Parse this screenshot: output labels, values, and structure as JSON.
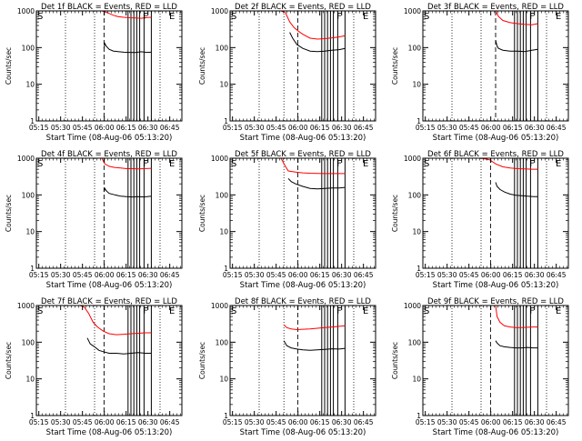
{
  "x_ticks": [
    "05:15",
    "05:30",
    "05:45",
    "06:00",
    "06:15",
    "06:30",
    "06:45"
  ],
  "y_ticks": [
    "1",
    "10",
    "100",
    "1000"
  ],
  "ylabel": "Counts/sec",
  "xlabel": "Start Time (08-Aug-06 05:13:20)",
  "colors": {
    "events": "#000000",
    "lld": "#ff0000",
    "axes": "#000000"
  },
  "chart_data": [
    {
      "type": "line",
      "title": "Det 1f BLACK = Events, RED = LLD",
      "scale": "log",
      "ylim": [
        1,
        1000
      ],
      "xlim_minutes": [
        0,
        100
      ],
      "dotted_lines": [
        20,
        40,
        85
      ],
      "dashed_line": 46.5,
      "solid_lines": [
        63,
        65,
        67,
        69,
        71,
        74,
        79
      ],
      "markers": [
        {
          "text": "S",
          "x": 0
        },
        {
          "text": "F",
          "x": 72
        },
        {
          "text": "E",
          "x": 90
        }
      ],
      "series": [
        {
          "name": "Events",
          "x": [
            46.5,
            47,
            48,
            50,
            53,
            56,
            60,
            64,
            68,
            72,
            76,
            79
          ],
          "values": [
            95,
            130,
            110,
            90,
            80,
            78,
            75,
            74,
            73,
            77,
            74,
            75
          ]
        },
        {
          "name": "LLD",
          "x": [
            45,
            47,
            50,
            53,
            56,
            60,
            64,
            68,
            72,
            76,
            79
          ],
          "values": [
            1000,
            950,
            850,
            760,
            700,
            670,
            650,
            640,
            630,
            660,
            670
          ]
        }
      ]
    },
    {
      "type": "line",
      "title": "Det 2f BLACK = Events, RED = LLD",
      "scale": "log",
      "ylim": [
        1,
        1000
      ],
      "xlim_minutes": [
        0,
        100
      ],
      "dotted_lines": [
        20,
        37,
        85
      ],
      "dashed_line": 46.5,
      "solid_lines": [
        63,
        65,
        67,
        69,
        71,
        74,
        79
      ],
      "markers": [
        {
          "text": "S",
          "x": 0
        },
        {
          "text": "F",
          "x": 72
        },
        {
          "text": "E",
          "x": 90
        }
      ],
      "series": [
        {
          "name": "Events",
          "x": [
            41,
            43,
            46,
            50,
            55,
            60,
            65,
            70,
            75,
            79
          ],
          "values": [
            260,
            180,
            120,
            95,
            80,
            78,
            80,
            85,
            88,
            95
          ]
        },
        {
          "name": "LLD",
          "x": [
            35,
            38,
            41,
            44,
            47,
            50,
            55,
            60,
            65,
            70,
            75,
            79
          ],
          "values": [
            1000,
            900,
            500,
            350,
            280,
            230,
            180,
            170,
            175,
            185,
            195,
            210
          ]
        }
      ]
    },
    {
      "type": "line",
      "title": "Det 3f BLACK = Events, RED = LLD",
      "scale": "log",
      "ylim": [
        1,
        1000
      ],
      "xlim_minutes": [
        0,
        100
      ],
      "dotted_lines": [
        20,
        40,
        85
      ],
      "dashed_line": 50,
      "solid_lines": [
        63,
        65,
        67,
        69,
        71,
        74,
        79
      ],
      "markers": [
        {
          "text": "S",
          "x": 0
        },
        {
          "text": "F",
          "x": 72
        },
        {
          "text": "E",
          "x": 90
        }
      ],
      "series": [
        {
          "name": "Events",
          "x": [
            50,
            51,
            52,
            55,
            60,
            65,
            70,
            75,
            79
          ],
          "values": [
            160,
            110,
            95,
            85,
            80,
            80,
            78,
            85,
            90
          ]
        },
        {
          "name": "LLD",
          "x": [
            50,
            52,
            55,
            60,
            65,
            70,
            75,
            79
          ],
          "values": [
            1000,
            700,
            550,
            480,
            450,
            430,
            420,
            450
          ]
        }
      ]
    },
    {
      "type": "line",
      "title": "Det 4f BLACK = Events, RED = LLD",
      "scale": "log",
      "ylim": [
        1,
        1000
      ],
      "xlim_minutes": [
        0,
        100
      ],
      "dotted_lines": [
        20,
        40,
        85
      ],
      "dashed_line": 46.5,
      "solid_lines": [
        63,
        65,
        67,
        69,
        71,
        74,
        79
      ],
      "markers": [
        {
          "text": "S",
          "x": 0
        },
        {
          "text": "F",
          "x": 72
        },
        {
          "text": "E",
          "x": 90
        }
      ],
      "series": [
        {
          "name": "Events",
          "x": [
            46.5,
            47,
            48,
            50,
            54,
            58,
            62,
            66,
            70,
            74,
            79
          ],
          "values": [
            120,
            150,
            130,
            110,
            100,
            92,
            90,
            88,
            90,
            88,
            92
          ]
        },
        {
          "name": "LLD",
          "x": [
            45,
            47,
            50,
            54,
            58,
            62,
            66,
            70,
            74,
            79
          ],
          "values": [
            1000,
            700,
            600,
            560,
            540,
            520,
            520,
            510,
            520,
            530
          ]
        }
      ]
    },
    {
      "type": "line",
      "title": "Det 5f BLACK = Events, RED = LLD",
      "scale": "log",
      "ylim": [
        1,
        1000
      ],
      "xlim_minutes": [
        0,
        100
      ],
      "dotted_lines": [
        20,
        37,
        85
      ],
      "dashed_line": 46.5,
      "solid_lines": [
        63,
        65,
        67,
        69,
        71,
        74,
        79
      ],
      "markers": [
        {
          "text": "S",
          "x": 0
        },
        {
          "text": "F",
          "x": 72
        },
        {
          "text": "E",
          "x": 90
        }
      ],
      "series": [
        {
          "name": "Events",
          "x": [
            40,
            42,
            45,
            50,
            55,
            60,
            65,
            70,
            75,
            79
          ],
          "values": [
            280,
            230,
            200,
            170,
            150,
            145,
            150,
            155,
            155,
            160
          ]
        },
        {
          "name": "LLD",
          "x": [
            35,
            38,
            40,
            45,
            50,
            55,
            60,
            65,
            70,
            75,
            79
          ],
          "values": [
            1000,
            600,
            450,
            420,
            400,
            390,
            385,
            380,
            380,
            380,
            380
          ]
        }
      ]
    },
    {
      "type": "line",
      "title": "Det 6f BLACK = Events, RED = LLD",
      "scale": "log",
      "ylim": [
        1,
        1000
      ],
      "xlim_minutes": [
        0,
        100
      ],
      "dotted_lines": [
        20,
        40,
        85
      ],
      "dashed_line": 46.5,
      "solid_lines": [
        63,
        65,
        67,
        69,
        71,
        74,
        79
      ],
      "markers": [
        {
          "text": "S",
          "x": 0
        },
        {
          "text": "F",
          "x": 72
        },
        {
          "text": "E",
          "x": 90
        }
      ],
      "series": [
        {
          "name": "Events",
          "x": [
            50,
            51,
            53,
            56,
            60,
            64,
            68,
            72,
            76,
            79
          ],
          "values": [
            220,
            170,
            140,
            120,
            105,
            98,
            95,
            92,
            90,
            90
          ]
        },
        {
          "name": "LLD",
          "x": [
            40,
            43,
            46,
            50,
            55,
            60,
            65,
            70,
            75,
            79
          ],
          "values": [
            1000,
            950,
            900,
            700,
            580,
            540,
            520,
            510,
            500,
            500
          ]
        }
      ]
    },
    {
      "type": "line",
      "title": "Det 7f BLACK = Events, RED = LLD",
      "scale": "log",
      "ylim": [
        1,
        1000
      ],
      "xlim_minutes": [
        0,
        100
      ],
      "dotted_lines": [
        20,
        40,
        85
      ],
      "dashed_line": 46.5,
      "solid_lines": [
        63,
        65,
        67,
        69,
        71,
        74,
        79
      ],
      "markers": [
        {
          "text": "S",
          "x": 0
        },
        {
          "text": "F",
          "x": 72
        },
        {
          "text": "E",
          "x": 90
        }
      ],
      "series": [
        {
          "name": "Events",
          "x": [
            35,
            37,
            40,
            43,
            46,
            50,
            55,
            60,
            65,
            70,
            75,
            79
          ],
          "values": [
            130,
            90,
            75,
            60,
            55,
            50,
            50,
            48,
            50,
            52,
            50,
            50
          ]
        },
        {
          "name": "LLD",
          "x": [
            30,
            33,
            36,
            39,
            42,
            46,
            50,
            55,
            60,
            65,
            70,
            75,
            79
          ],
          "values": [
            1000,
            900,
            600,
            350,
            260,
            200,
            170,
            160,
            165,
            170,
            175,
            180,
            180
          ]
        }
      ]
    },
    {
      "type": "line",
      "title": "Det 8f BLACK = Events, RED = LLD",
      "scale": "log",
      "ylim": [
        1,
        1000
      ],
      "xlim_minutes": [
        0,
        100
      ],
      "dotted_lines": [
        20,
        37,
        85
      ],
      "dashed_line": 46.5,
      "solid_lines": [
        63,
        65,
        67,
        69,
        71,
        74,
        79
      ],
      "markers": [
        {
          "text": "S",
          "x": 0
        },
        {
          "text": "F",
          "x": 72
        },
        {
          "text": "E",
          "x": 90
        }
      ],
      "series": [
        {
          "name": "Events",
          "x": [
            37,
            39,
            42,
            46,
            50,
            55,
            60,
            65,
            70,
            75,
            79
          ],
          "values": [
            110,
            80,
            70,
            65,
            62,
            60,
            62,
            64,
            66,
            65,
            68
          ]
        },
        {
          "name": "LLD",
          "x": [
            37,
            39,
            42,
            46,
            50,
            55,
            60,
            65,
            70,
            75,
            79
          ],
          "values": [
            300,
            250,
            230,
            220,
            225,
            230,
            240,
            250,
            260,
            270,
            280
          ]
        }
      ]
    },
    {
      "type": "line",
      "title": "Det 9f BLACK = Events, RED = LLD",
      "scale": "log",
      "ylim": [
        1,
        1000
      ],
      "xlim_minutes": [
        0,
        100
      ],
      "dotted_lines": [
        20,
        40,
        85
      ],
      "dashed_line": 46.5,
      "solid_lines": [
        63,
        65,
        67,
        69,
        71,
        74,
        79
      ],
      "markers": [
        {
          "text": "S",
          "x": 0
        },
        {
          "text": "F",
          "x": 72
        },
        {
          "text": "E",
          "x": 90
        }
      ],
      "series": [
        {
          "name": "Events",
          "x": [
            50,
            51,
            53,
            56,
            60,
            64,
            68,
            72,
            76,
            79
          ],
          "values": [
            110,
            95,
            80,
            75,
            72,
            70,
            70,
            72,
            70,
            70
          ]
        },
        {
          "name": "LLD",
          "x": [
            50,
            51,
            53,
            56,
            60,
            64,
            68,
            72,
            76,
            79
          ],
          "values": [
            1000,
            500,
            350,
            280,
            260,
            250,
            250,
            255,
            260,
            260
          ]
        }
      ]
    }
  ]
}
